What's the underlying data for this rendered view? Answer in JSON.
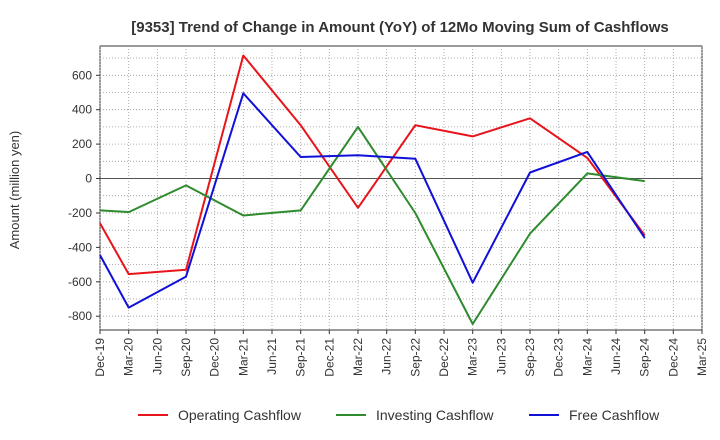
{
  "chart_data": {
    "type": "line",
    "title": "[9353]  Trend of Change in Amount (YoY) of 12Mo Moving Sum of Cashflows",
    "xlabel": "",
    "ylabel": "Amount (million yen)",
    "categories": [
      "Dec-19",
      "Mar-20",
      "Jun-20",
      "Sep-20",
      "Dec-20",
      "Mar-21",
      "Jun-21",
      "Sep-21",
      "Dec-21",
      "Mar-22",
      "Jun-22",
      "Sep-22",
      "Dec-22",
      "Mar-23",
      "Jun-23",
      "Sep-23",
      "Dec-23",
      "Mar-24",
      "Jun-24",
      "Sep-24",
      "Dec-24",
      "Mar-25"
    ],
    "ylim": [
      -880,
      770
    ],
    "yticks": [
      -800,
      -600,
      -400,
      -200,
      0,
      200,
      400,
      600
    ],
    "grid": true,
    "series": [
      {
        "name": "Operating Cashflow",
        "color": "#e8141b",
        "values": [
          -260,
          -555,
          null,
          -530,
          null,
          715,
          null,
          310,
          null,
          -170,
          null,
          310,
          null,
          245,
          null,
          350,
          null,
          120,
          null,
          -330,
          null,
          null
        ]
      },
      {
        "name": "Investing Cashflow",
        "color": "#2e8b2e",
        "values": [
          -185,
          -195,
          null,
          -40,
          null,
          -215,
          null,
          -185,
          null,
          300,
          null,
          -200,
          null,
          -845,
          null,
          -320,
          null,
          30,
          null,
          -15,
          null,
          null
        ]
      },
      {
        "name": "Free Cashflow",
        "color": "#1010d8",
        "values": [
          -445,
          -750,
          null,
          -570,
          null,
          495,
          null,
          125,
          null,
          135,
          null,
          115,
          null,
          -605,
          null,
          35,
          null,
          155,
          null,
          -345,
          null,
          null
        ]
      }
    ]
  }
}
